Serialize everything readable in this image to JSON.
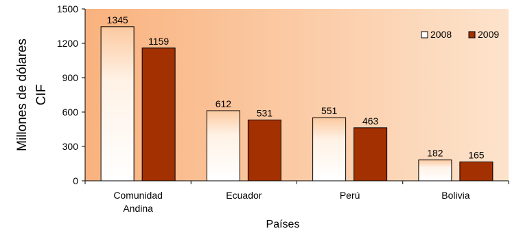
{
  "chart_data": {
    "type": "bar",
    "categories": [
      "Comunidad Andina",
      "Ecuador",
      "Perú",
      "Bolivia"
    ],
    "category_lines": [
      [
        "Comunidad",
        "Andina"
      ],
      [
        "Ecuador"
      ],
      [
        "Perú"
      ],
      [
        "Bolivia"
      ]
    ],
    "series": [
      {
        "name": "2008",
        "values": [
          1345,
          612,
          551,
          182
        ],
        "color": "#ffffff"
      },
      {
        "name": "2009",
        "values": [
          1159,
          531,
          463,
          165
        ],
        "color": "#a33000"
      }
    ],
    "data_labels": [
      [
        "1345",
        "612",
        "551",
        "182"
      ],
      [
        "1159",
        "531",
        "463",
        "165"
      ]
    ],
    "ylabel_lines": [
      "Millones de dólares",
      "CIF"
    ],
    "xlabel": "Países",
    "ylim": [
      0,
      1500
    ],
    "yticks": [
      "0",
      "300",
      "600",
      "900",
      "1200",
      "1500"
    ],
    "legend_position": "top-right",
    "plot_background": [
      "#f9b27e",
      "#fde3cc"
    ]
  }
}
